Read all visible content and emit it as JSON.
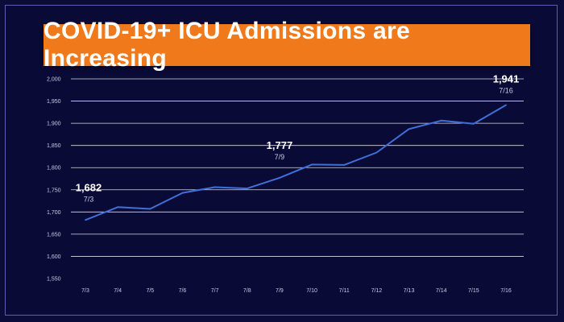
{
  "title": "COVID-19+ ICU Admissions are Increasing",
  "colors": {
    "background": "#0a0a36",
    "banner": "#f0791c",
    "line": "#3f6fd8",
    "grid": "#ffffff"
  },
  "chart_data": {
    "type": "line",
    "title": "COVID-19+ ICU Admissions are Increasing",
    "xlabel": "",
    "ylabel": "",
    "categories": [
      "7/3",
      "7/4",
      "7/5",
      "7/6",
      "7/7",
      "7/8",
      "7/9",
      "7/10",
      "7/11",
      "7/12",
      "7/13",
      "7/14",
      "7/15",
      "7/16"
    ],
    "series": [
      {
        "values": [
          1682,
          1711,
          1707,
          1743,
          1756,
          1753,
          1777,
          1807,
          1806,
          1834,
          1887,
          1906,
          1899,
          1941
        ]
      }
    ],
    "ylim": [
      1550,
      2000
    ],
    "yticks": [
      "1,550",
      "1,600",
      "1,650",
      "1,700",
      "1,750",
      "1,800",
      "1,850",
      "1,900",
      "1,950",
      "2,000"
    ],
    "grid": true,
    "annotations": [
      {
        "value": "1,682",
        "date": "7/3",
        "index": 0
      },
      {
        "value": "1,777",
        "date": "7/9",
        "index": 6
      },
      {
        "value": "1,941",
        "date": "7/16",
        "index": 13
      }
    ]
  }
}
